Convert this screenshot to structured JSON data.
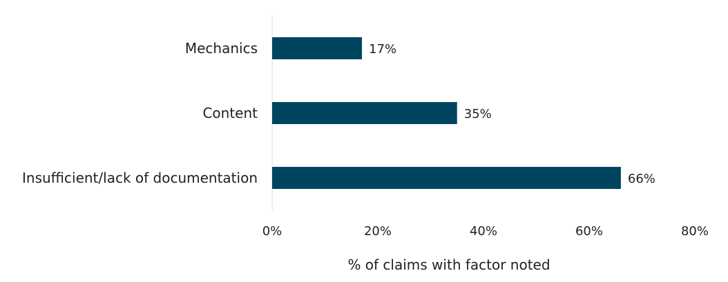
{
  "chart_data": {
    "type": "bar",
    "orientation": "horizontal",
    "categories": [
      "Mechanics",
      "Content",
      "Insufficient/lack of documentation"
    ],
    "values": [
      17,
      35,
      66
    ],
    "value_labels": [
      "17%",
      "35%",
      "66%"
    ],
    "xlabel": "% of claims with factor noted",
    "ylabel": "",
    "xlim": [
      0,
      80
    ],
    "x_ticks": [
      0,
      20,
      40,
      60,
      80
    ],
    "x_tick_labels": [
      "0%",
      "20%",
      "40%",
      "60%",
      "80%"
    ],
    "grid": false,
    "legend": "none",
    "bar_color": "#004560",
    "axis_color": "#d9d9d9"
  }
}
